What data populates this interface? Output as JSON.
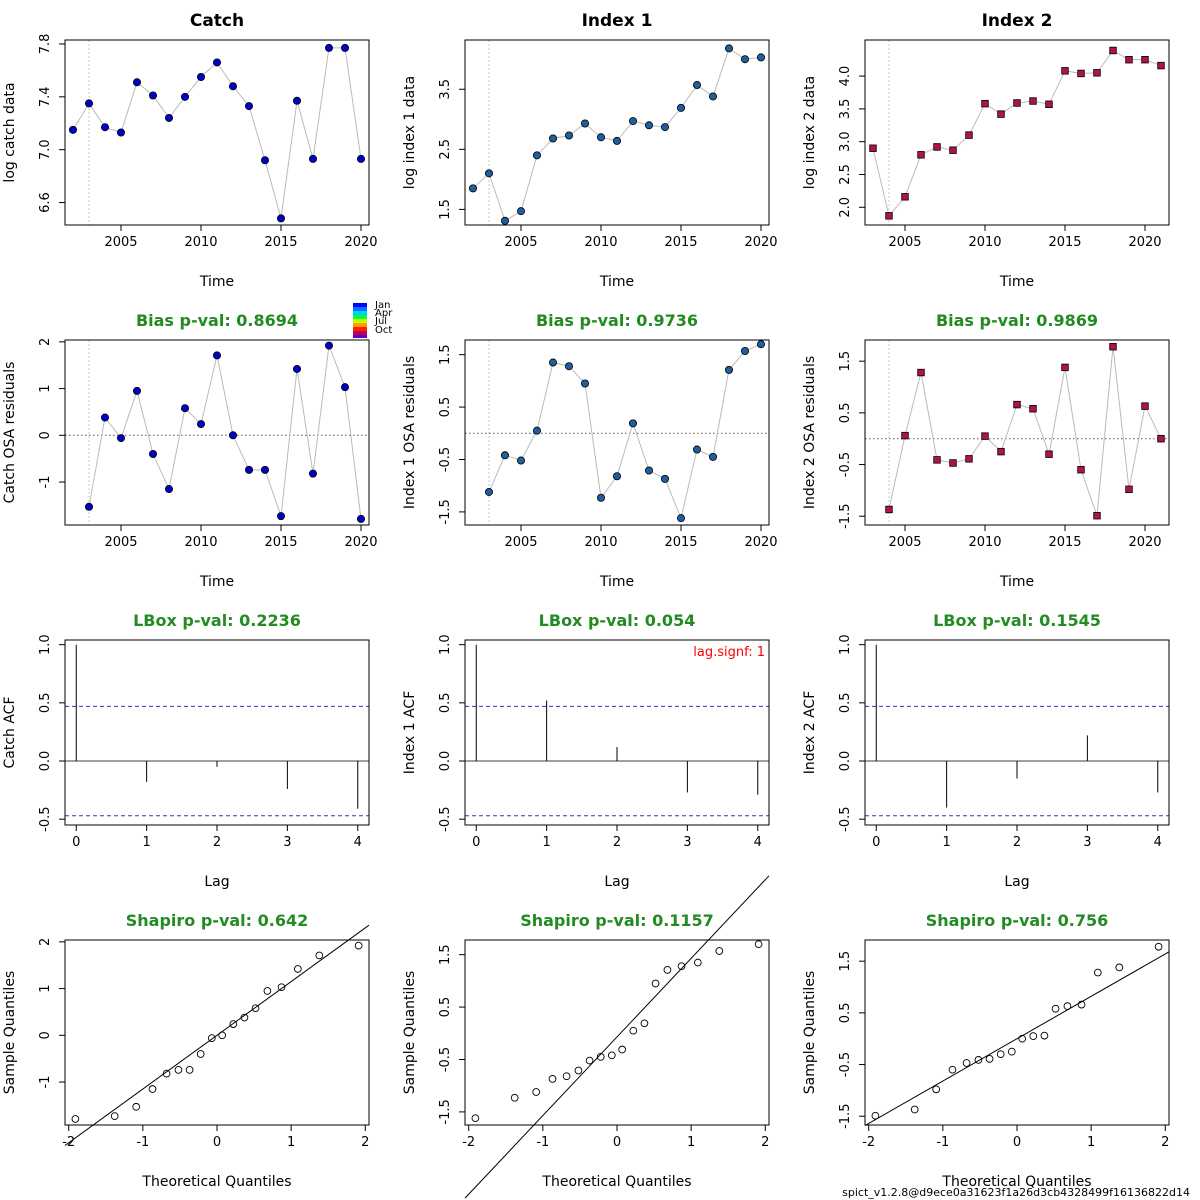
{
  "footer": "spict_v1.2.8@d9ece0a31623f1a26d3cb4328499f16136822d14",
  "month_legend": [
    "Jan",
    "Apr",
    "Jul",
    "Oct"
  ],
  "colors": {
    "catch_point": "#0000cc",
    "index1_point": "#1f5f9f",
    "index2_point": "#b0124f",
    "stat_title": "#228B22",
    "ci_line": "#3333cc",
    "signif_note": "#ff0000",
    "connect_line": "#bbbbbb"
  },
  "chart_data": [
    {
      "id": "catch-data",
      "type": "scatter",
      "title": "Catch",
      "xlabel": "Time",
      "ylabel": "log catch data",
      "xlim": [
        2001.5,
        2020.5
      ],
      "ylim": [
        6.43,
        7.83
      ],
      "xticks": [
        2005,
        2010,
        2015,
        2020
      ],
      "yticks": [
        6.6,
        7.0,
        7.4,
        7.8
      ],
      "marker": "circle",
      "color": "#0000cc",
      "connect": true,
      "vline": 2003,
      "x": [
        2002,
        2003,
        2004,
        2005,
        2006,
        2007,
        2008,
        2009,
        2010,
        2011,
        2012,
        2013,
        2014,
        2015,
        2016,
        2017,
        2018,
        2019,
        2020
      ],
      "y": [
        7.15,
        7.35,
        7.17,
        7.13,
        7.51,
        7.41,
        7.24,
        7.4,
        7.55,
        7.66,
        7.48,
        7.33,
        6.92,
        6.48,
        7.37,
        6.93,
        7.77,
        7.77,
        6.93
      ]
    },
    {
      "id": "index1-data",
      "type": "scatter",
      "title": "Index 1",
      "xlabel": "Time",
      "ylabel": "log index 1 data",
      "xlim": [
        2001.5,
        2020.5
      ],
      "ylim": [
        1.24,
        4.32
      ],
      "xticks": [
        2005,
        2010,
        2015,
        2020
      ],
      "yticks": [
        1.5,
        2.5,
        3.5
      ],
      "marker": "circle",
      "color": "#1f5f9f",
      "connect": true,
      "vline": 2003,
      "x": [
        2002,
        2003,
        2004,
        2005,
        2006,
        2007,
        2008,
        2009,
        2010,
        2011,
        2012,
        2013,
        2014,
        2015,
        2016,
        2017,
        2018,
        2019,
        2020
      ],
      "y": [
        1.85,
        2.1,
        1.31,
        1.47,
        2.4,
        2.68,
        2.73,
        2.93,
        2.7,
        2.64,
        2.97,
        2.9,
        2.87,
        3.19,
        3.57,
        3.38,
        4.18,
        4.0,
        4.03
      ]
    },
    {
      "id": "index2-data",
      "type": "scatter",
      "title": "Index 2",
      "xlabel": "Time",
      "ylabel": "log index 2 data",
      "xlim": [
        2002.5,
        2021.5
      ],
      "ylim": [
        1.73,
        4.55
      ],
      "xticks": [
        2005,
        2010,
        2015,
        2020
      ],
      "yticks": [
        2.0,
        2.5,
        3.0,
        3.5,
        4.0
      ],
      "marker": "square",
      "color": "#b0124f",
      "connect": true,
      "vline": 2004,
      "x": [
        2003,
        2004,
        2005,
        2006,
        2007,
        2008,
        2009,
        2010,
        2011,
        2012,
        2013,
        2014,
        2015,
        2016,
        2017,
        2018,
        2019,
        2020,
        2021
      ],
      "y": [
        2.9,
        1.87,
        2.16,
        2.8,
        2.92,
        2.87,
        3.1,
        3.58,
        3.42,
        3.59,
        3.62,
        3.57,
        4.08,
        4.04,
        4.05,
        4.39,
        4.25,
        4.25,
        4.16
      ]
    },
    {
      "id": "catch-resid",
      "type": "scatter",
      "title": "Bias p-val: 0.8694",
      "xlabel": "Time",
      "ylabel": "Catch OSA residuals",
      "xlim": [
        2001.5,
        2020.5
      ],
      "ylim": [
        -1.92,
        2.04
      ],
      "xticks": [
        2005,
        2010,
        2015,
        2020
      ],
      "yticks": [
        -1,
        0,
        1,
        2
      ],
      "marker": "circle",
      "color": "#0000cc",
      "connect": true,
      "vline": 2003,
      "hline": 0,
      "x": [
        2003,
        2004,
        2005,
        2006,
        2007,
        2008,
        2009,
        2010,
        2011,
        2012,
        2013,
        2014,
        2015,
        2016,
        2017,
        2018,
        2019,
        2020
      ],
      "y": [
        -1.53,
        0.38,
        -0.06,
        0.95,
        -0.4,
        -1.15,
        0.58,
        0.24,
        1.71,
        0.0,
        -0.74,
        -0.74,
        -1.73,
        1.42,
        -0.82,
        1.92,
        1.03,
        -1.79
      ]
    },
    {
      "id": "index1-resid",
      "type": "scatter",
      "title": "Bias p-val: 0.9736",
      "xlabel": "Time",
      "ylabel": "Index 1 OSA residuals",
      "xlim": [
        2001.5,
        2020.5
      ],
      "ylim": [
        -1.75,
        1.78
      ],
      "xticks": [
        2005,
        2010,
        2015,
        2020
      ],
      "yticks": [
        -1.5,
        -0.5,
        0.5,
        1.5
      ],
      "marker": "circle",
      "color": "#1f5f9f",
      "connect": true,
      "vline": 2003,
      "hline": 0,
      "x": [
        2003,
        2004,
        2005,
        2006,
        2007,
        2008,
        2009,
        2010,
        2011,
        2012,
        2013,
        2014,
        2015,
        2016,
        2017,
        2018,
        2019,
        2020
      ],
      "y": [
        -1.12,
        -0.42,
        -0.52,
        0.05,
        1.35,
        1.28,
        0.95,
        -1.23,
        -0.82,
        0.19,
        -0.71,
        -0.87,
        -1.62,
        -0.31,
        -0.45,
        1.21,
        1.57,
        1.7
      ]
    },
    {
      "id": "index2-resid",
      "type": "scatter",
      "title": "Bias p-val: 0.9869",
      "xlabel": "Time",
      "ylabel": "Index 2 OSA residuals",
      "xlim": [
        2002.5,
        2021.5
      ],
      "ylim": [
        -1.67,
        1.91
      ],
      "xticks": [
        2005,
        2010,
        2015,
        2020
      ],
      "yticks": [
        -1.5,
        -0.5,
        0.5,
        1.5
      ],
      "marker": "square",
      "color": "#b0124f",
      "connect": true,
      "vline": 2004,
      "hline": 0,
      "x": [
        2004,
        2005,
        2006,
        2007,
        2008,
        2009,
        2010,
        2011,
        2012,
        2013,
        2014,
        2015,
        2016,
        2017,
        2018,
        2019,
        2020,
        2021
      ],
      "y": [
        -1.37,
        0.06,
        1.28,
        -0.41,
        -0.47,
        -0.39,
        0.05,
        -0.25,
        0.66,
        0.58,
        -0.3,
        1.38,
        -0.6,
        -1.49,
        1.78,
        -0.98,
        0.63,
        0.0
      ]
    },
    {
      "id": "catch-acf",
      "type": "bar",
      "title": "LBox p-val: 0.2236",
      "xlabel": "Lag",
      "ylabel": "Catch ACF",
      "xlim": [
        -0.16,
        4.16
      ],
      "ylim": [
        -0.55,
        1.04
      ],
      "xticks": [
        0,
        1,
        2,
        3,
        4
      ],
      "yticks": [
        -0.5,
        0.0,
        0.5,
        1.0
      ],
      "ci": 0.47,
      "lags": [
        0,
        1,
        2,
        3,
        4
      ],
      "values": [
        1.0,
        -0.18,
        -0.05,
        -0.24,
        -0.41
      ]
    },
    {
      "id": "index1-acf",
      "type": "bar",
      "title": "LBox p-val: 0.054",
      "xlabel": "Lag",
      "ylabel": "Index 1 ACF",
      "xlim": [
        -0.16,
        4.16
      ],
      "ylim": [
        -0.55,
        1.04
      ],
      "xticks": [
        0,
        1,
        2,
        3,
        4
      ],
      "yticks": [
        -0.5,
        0.0,
        0.5,
        1.0
      ],
      "ci": 0.47,
      "annotation": "lag.signf: 1",
      "lags": [
        0,
        1,
        2,
        3,
        4
      ],
      "values": [
        1.0,
        0.52,
        0.12,
        -0.27,
        -0.29
      ]
    },
    {
      "id": "index2-acf",
      "type": "bar",
      "title": "LBox p-val: 0.1545",
      "xlabel": "Lag",
      "ylabel": "Index 2 ACF",
      "xlim": [
        -0.16,
        4.16
      ],
      "ylim": [
        -0.55,
        1.04
      ],
      "xticks": [
        0,
        1,
        2,
        3,
        4
      ],
      "yticks": [
        -0.5,
        0.0,
        0.5,
        1.0
      ],
      "ci": 0.47,
      "lags": [
        0,
        1,
        2,
        3,
        4
      ],
      "values": [
        1.0,
        -0.4,
        -0.15,
        0.22,
        -0.27
      ]
    },
    {
      "id": "catch-qq",
      "type": "scatter",
      "title": "Shapiro p-val: 0.642",
      "xlabel": "Theoretical Quantiles",
      "ylabel": "Sample Quantiles",
      "xlim": [
        -2.05,
        2.05
      ],
      "ylim": [
        -1.92,
        2.04
      ],
      "xticks": [
        -2,
        -1,
        0,
        1,
        2
      ],
      "yticks": [
        -1,
        0,
        1,
        2
      ],
      "marker": "open-circle",
      "qqline": [
        0.0,
        1.15
      ],
      "x": [
        -1.91,
        -1.38,
        -1.09,
        -0.87,
        -0.68,
        -0.52,
        -0.37,
        -0.22,
        -0.07,
        0.07,
        0.22,
        0.37,
        0.52,
        0.68,
        0.87,
        1.09,
        1.38,
        1.91
      ],
      "y": [
        -1.79,
        -1.73,
        -1.53,
        -1.15,
        -0.82,
        -0.74,
        -0.74,
        -0.4,
        -0.06,
        0.0,
        0.24,
        0.38,
        0.58,
        0.95,
        1.03,
        1.42,
        1.71,
        1.92
      ]
    },
    {
      "id": "index1-qq",
      "type": "scatter",
      "title": "Shapiro p-val: 0.1157",
      "xlabel": "Theoretical Quantiles",
      "ylabel": "Sample Quantiles",
      "xlim": [
        -2.05,
        2.05
      ],
      "ylim": [
        -1.75,
        1.78
      ],
      "xticks": [
        -2,
        -1,
        0,
        1,
        2
      ],
      "yticks": [
        -1.5,
        -0.5,
        0.5,
        1.5
      ],
      "marker": "open-circle",
      "qqline": [
        -0.07,
        1.5
      ],
      "x": [
        -1.91,
        -1.38,
        -1.09,
        -0.87,
        -0.68,
        -0.52,
        -0.37,
        -0.22,
        -0.07,
        0.07,
        0.22,
        0.37,
        0.52,
        0.68,
        0.87,
        1.09,
        1.38,
        1.91
      ],
      "y": [
        -1.62,
        -1.23,
        -1.12,
        -0.87,
        -0.82,
        -0.71,
        -0.52,
        -0.45,
        -0.42,
        -0.31,
        0.05,
        0.19,
        0.95,
        1.21,
        1.28,
        1.35,
        1.57,
        1.7
      ]
    },
    {
      "id": "index2-qq",
      "type": "scatter",
      "title": "Shapiro p-val: 0.756",
      "xlabel": "Theoretical Quantiles",
      "ylabel": "Sample Quantiles",
      "xlim": [
        -2.05,
        2.05
      ],
      "ylim": [
        -1.67,
        1.91
      ],
      "xticks": [
        -2,
        -1,
        0,
        1,
        2
      ],
      "yticks": [
        -1.5,
        -0.5,
        0.5,
        1.5
      ],
      "marker": "open-circle",
      "qqline": [
        0.0,
        0.82
      ],
      "x": [
        -1.91,
        -1.38,
        -1.09,
        -0.87,
        -0.68,
        -0.52,
        -0.37,
        -0.22,
        -0.07,
        0.07,
        0.22,
        0.37,
        0.52,
        0.68,
        0.87,
        1.09,
        1.38,
        1.91
      ],
      "y": [
        -1.49,
        -1.37,
        -0.98,
        -0.6,
        -0.47,
        -0.41,
        -0.39,
        -0.3,
        -0.25,
        0.0,
        0.05,
        0.06,
        0.58,
        0.63,
        0.66,
        1.28,
        1.38,
        1.78
      ]
    }
  ]
}
